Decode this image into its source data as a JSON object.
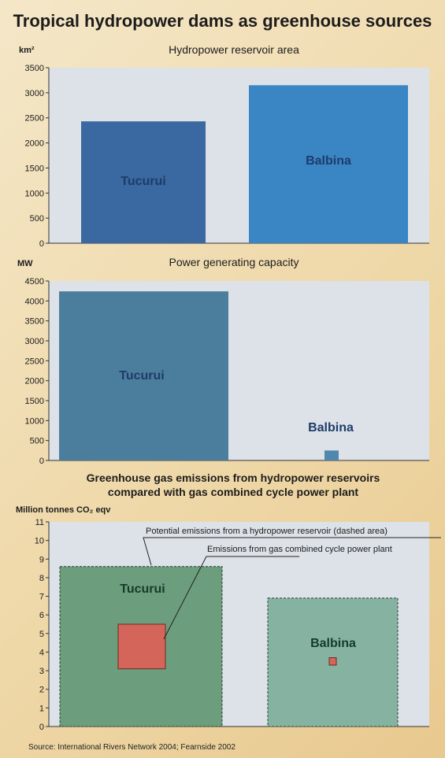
{
  "title": "Tropical hydropower dams as greenhouse sources",
  "source": "Source: International Rivers Network 2004; Fearnside 2002",
  "colors": {
    "panel_bg": "#dde2e8",
    "tucurui_area": "#3a68a0",
    "balbina_area": "#3a85c3",
    "tucurui_power": "#4b7d9d",
    "balbina_power": "#4f87ad",
    "tucurui_ghg": "#6c9e7d",
    "balbina_ghg": "#86b3a1",
    "gas_plant": "#d4655a",
    "axis": "#333333"
  },
  "chart_data": [
    {
      "type": "bar",
      "title": "Hydropower reservoir area",
      "ylabel": "km²",
      "categories": [
        "Tucurui",
        "Balbina"
      ],
      "values": [
        2430,
        3150
      ],
      "ylim": [
        0,
        3500
      ],
      "yticks": [
        0,
        500,
        1000,
        1500,
        2000,
        2500,
        3000,
        3500
      ]
    },
    {
      "type": "bar",
      "title": "Power generating capacity",
      "ylabel": "MW",
      "categories": [
        "Tucurui",
        "Balbina"
      ],
      "values": [
        4240,
        250
      ],
      "ylim": [
        0,
        4500
      ],
      "yticks": [
        0,
        500,
        1000,
        1500,
        2000,
        2500,
        3000,
        3500,
        4000,
        4500
      ]
    },
    {
      "type": "bar",
      "title_line1": "Greenhouse gas emissions from hydropower reservoirs",
      "title_line2": "compared with gas combined cycle power plant",
      "ylabel": "Million tonnes CO₂ eqv",
      "categories": [
        "Tucurui",
        "Balbina"
      ],
      "series": [
        {
          "name": "Potential emissions from a hydropower reservoir (dashed area)",
          "values": [
            8.6,
            6.9
          ]
        },
        {
          "name": "Emissions from gas combined cycle power plant",
          "values": [
            2.4,
            0.4
          ]
        }
      ],
      "ylim": [
        0,
        11
      ],
      "yticks": [
        0,
        1,
        2,
        3,
        4,
        5,
        6,
        7,
        8,
        9,
        10,
        11
      ]
    }
  ]
}
